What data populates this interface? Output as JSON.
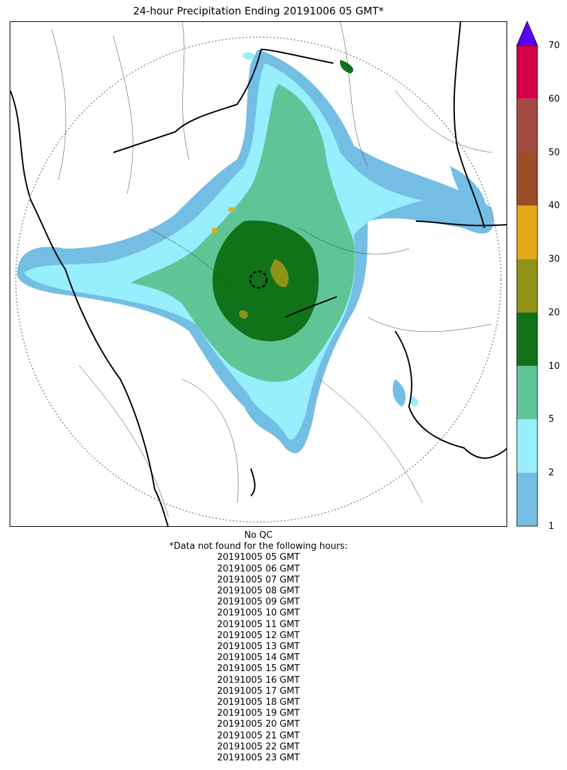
{
  "title": "24-hour Precipitation Ending 20191006 05 GMT*",
  "colorbar": {
    "ticks": [
      "1",
      "2",
      "5",
      "10",
      "20",
      "30",
      "40",
      "50",
      "60",
      "70"
    ],
    "colors": [
      "#74bde3",
      "#97eefd",
      "#5fc597",
      "#10731a",
      "#8d9418",
      "#e7a91a",
      "#9c4d28",
      "#a34b43",
      "#d60046"
    ],
    "extend_color": "#5b00ff"
  },
  "footer": {
    "qc": "No QC",
    "note": "*Data not found for the following hours:",
    "missing_hours": [
      "20191005 05 GMT",
      "20191005 06 GMT",
      "20191005 07 GMT",
      "20191005 08 GMT",
      "20191005 09 GMT",
      "20191005 10 GMT",
      "20191005 11 GMT",
      "20191005 12 GMT",
      "20191005 13 GMT",
      "20191005 14 GMT",
      "20191005 15 GMT",
      "20191005 16 GMT",
      "20191005 17 GMT",
      "20191005 18 GMT",
      "20191005 19 GMT",
      "20191005 20 GMT",
      "20191005 21 GMT",
      "20191005 22 GMT",
      "20191005 23 GMT"
    ]
  },
  "map": {
    "range_ring_color": "#888888",
    "border_color": "#000000"
  }
}
